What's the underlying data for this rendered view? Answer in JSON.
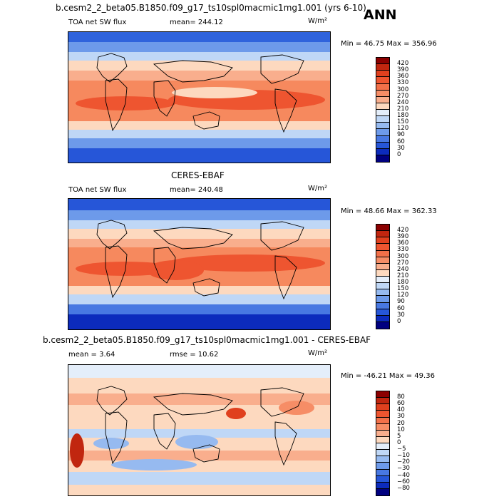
{
  "corner_label": "ANN",
  "panels": [
    {
      "title": "b.cesm2_2_beta05.B1850.f09_g17_ts10spl0macmic1mg1.001 (yrs 6-10)",
      "left_label": "TOA net SW flux",
      "stat_label": "mean= 244.12",
      "units": "W/m²",
      "minmax": "Min =  46.75 Max = 356.96",
      "colorbar_labels": [
        "420",
        "390",
        "360",
        "330",
        "300",
        "270",
        "240",
        "210",
        "180",
        "150",
        "120",
        "90",
        "60",
        "30",
        "0"
      ],
      "colorbar_colors": [
        "#8b0000",
        "#c1260f",
        "#e0401e",
        "#ee5530",
        "#f27049",
        "#f68d66",
        "#f9ae8d",
        "#fdd9bf",
        "#e4eefa",
        "#bfd7f6",
        "#96baf0",
        "#6d9aea",
        "#4878e2",
        "#2656d8",
        "#0c2bbd",
        "#000080"
      ]
    },
    {
      "title": "CERES-EBAF",
      "left_label": "TOA net SW flux",
      "stat_label": "mean= 240.48",
      "units": "W/m²",
      "minmax": "Min =  48.66 Max = 362.33",
      "colorbar_labels": [
        "420",
        "390",
        "360",
        "330",
        "300",
        "270",
        "240",
        "210",
        "180",
        "150",
        "120",
        "90",
        "60",
        "30",
        "0"
      ],
      "colorbar_colors": [
        "#8b0000",
        "#c1260f",
        "#e0401e",
        "#ee5530",
        "#f27049",
        "#f68d66",
        "#f9ae8d",
        "#fdd9bf",
        "#e4eefa",
        "#bfd7f6",
        "#96baf0",
        "#6d9aea",
        "#4878e2",
        "#2656d8",
        "#0c2bbd",
        "#000080"
      ]
    },
    {
      "title": "b.cesm2_2_beta05.B1850.f09_g17_ts10spl0macmic1mg1.001 - CERES-EBAF",
      "left_label": "mean =    3.64",
      "stat_label": "rmse =   10.62",
      "units": "W/m²",
      "minmax": "Min = -46.21 Max =  49.36",
      "colorbar_labels": [
        "80",
        "60",
        "40",
        "30",
        "20",
        "10",
        "5",
        "0",
        "−5",
        "−10",
        "−20",
        "−30",
        "−40",
        "−60",
        "−80"
      ],
      "colorbar_colors": [
        "#8b0000",
        "#c1260f",
        "#e0401e",
        "#ee5530",
        "#f27049",
        "#f68d66",
        "#f9ae8d",
        "#fdd9bf",
        "#e4eefa",
        "#bfd7f6",
        "#96baf0",
        "#6d9aea",
        "#4878e2",
        "#2656d8",
        "#0c2bbd",
        "#000080"
      ]
    }
  ]
}
